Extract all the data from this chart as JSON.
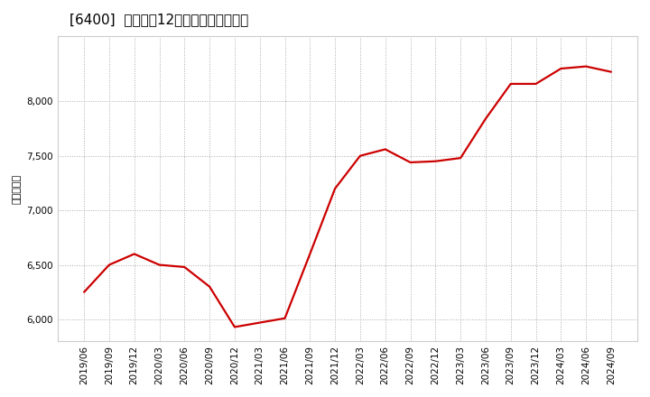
{
  "title": "[6400]  売上高の12か月移動合計の推移",
  "ylabel": "（百万円）",
  "line_color": "#cc0000",
  "background_color": "#ffffff",
  "plot_bg_color": "#ffffff",
  "grid_color": "#aaaaaa",
  "dates": [
    "2019/06",
    "2019/09",
    "2019/12",
    "2020/03",
    "2020/06",
    "2020/09",
    "2020/12",
    "2021/03",
    "2021/06",
    "2021/09",
    "2021/12",
    "2022/03",
    "2022/06",
    "2022/09",
    "2022/12",
    "2023/03",
    "2023/06",
    "2023/09",
    "2023/12",
    "2024/03",
    "2024/06",
    "2024/09"
  ],
  "values": [
    6250,
    6500,
    6600,
    6500,
    6480,
    6300,
    5930,
    5970,
    6010,
    6600,
    7200,
    7500,
    7560,
    7440,
    7450,
    7480,
    7840,
    8160,
    8160,
    8300,
    8320,
    8270
  ],
  "ylim": [
    5800,
    8600
  ],
  "yticks": [
    6000,
    6500,
    7000,
    7500,
    8000
  ],
  "title_fontsize": 11,
  "axis_fontsize": 7.5,
  "ylabel_fontsize": 8
}
